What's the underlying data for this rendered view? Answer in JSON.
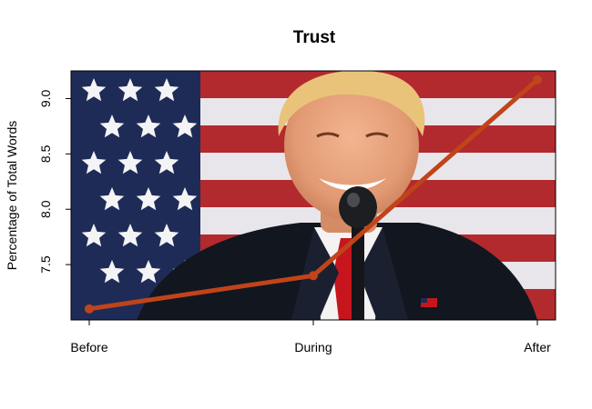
{
  "chart_data": {
    "type": "line",
    "title": "Trust",
    "xlabel": "",
    "ylabel": "Percentage of Total Words",
    "categories": [
      "Before",
      "During",
      "After"
    ],
    "values": [
      7.1,
      7.4,
      9.17
    ],
    "ylim": [
      7.0,
      9.25
    ],
    "yticks": [
      7.5,
      8.0,
      8.5,
      9.0
    ],
    "ytick_labels": [
      "7.5",
      "8.0",
      "8.5",
      "9.0"
    ],
    "grid": false,
    "line_color": "#c0441a",
    "background_image": "photo of a smiling man in a suit and red tie at a microphone in front of an American flag"
  }
}
